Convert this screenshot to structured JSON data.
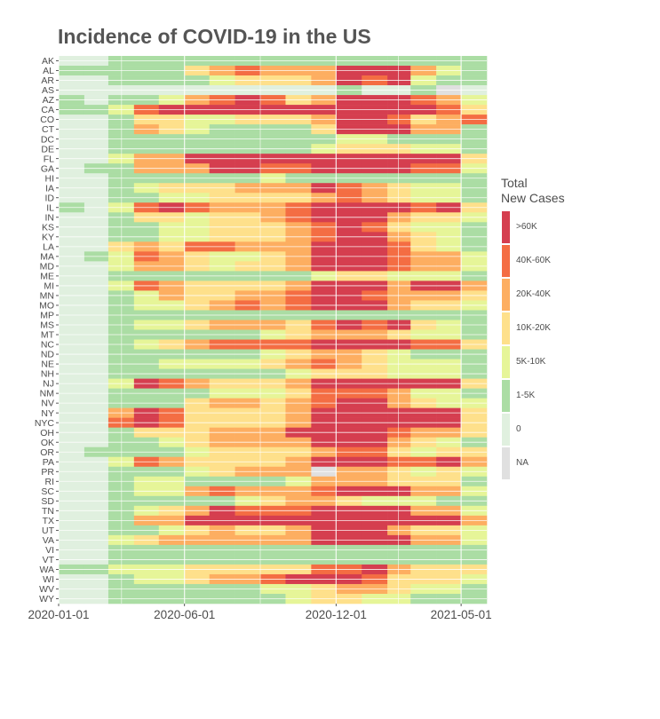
{
  "chart_data": {
    "type": "heatmap",
    "title": "Incidence of COVID-19 in the US",
    "xlabel": "",
    "ylabel": "",
    "x_ticks": [
      "2020-01-01",
      "2020-06-01",
      "2020-12-01",
      "2021-05-01"
    ],
    "x_months": [
      "2020-01",
      "2020-02",
      "2020-03",
      "2020-04",
      "2020-05",
      "2020-06",
      "2020-07",
      "2020-08",
      "2020-09",
      "2020-10",
      "2020-11",
      "2020-12",
      "2021-01",
      "2021-02",
      "2021-03",
      "2021-04",
      "2021-05"
    ],
    "legend": {
      "title": [
        "Total",
        "New Cases"
      ],
      "position": "right",
      "levels": [
        {
          "label": ">60K",
          "color": "#d53e4f"
        },
        {
          "label": "40K-60K",
          "color": "#f46d43"
        },
        {
          "label": "20K-40K",
          "color": "#fdae61"
        },
        {
          "label": "10K-20K",
          "color": "#fee08b"
        },
        {
          "label": "5K-10K",
          "color": "#e6f598"
        },
        {
          "label": "1-5K",
          "color": "#abdda4"
        },
        {
          "label": "0",
          "color": "#e0f0df"
        },
        {
          "label": "NA",
          "color": "#e0e0e0"
        }
      ]
    },
    "level_codes": "0 = 0, 1 = 1-5K, 2 = 5K-10K, 3 = 10K-20K, 4 = 20K-40K, 5 = 40K-60K, 6 = >60K, 7 = NA",
    "rows": [
      {
        "state": "AK",
        "levels": [
          0,
          0,
          1,
          1,
          1,
          1,
          1,
          1,
          1,
          1,
          1,
          1,
          1,
          1,
          1,
          1,
          1
        ]
      },
      {
        "state": "AL",
        "levels": [
          1,
          1,
          1,
          1,
          1,
          3,
          4,
          5,
          4,
          4,
          4,
          6,
          6,
          6,
          4,
          2,
          1
        ]
      },
      {
        "state": "AR",
        "levels": [
          0,
          0,
          1,
          1,
          1,
          1,
          2,
          3,
          3,
          3,
          4,
          6,
          5,
          6,
          2,
          1,
          1
        ]
      },
      {
        "state": "AS",
        "levels": [
          0,
          0,
          0,
          0,
          0,
          0,
          0,
          0,
          0,
          0,
          0,
          1,
          0,
          0,
          1,
          7,
          0
        ]
      },
      {
        "state": "AZ",
        "levels": [
          1,
          0,
          1,
          1,
          2,
          4,
          5,
          6,
          5,
          3,
          4,
          6,
          6,
          6,
          5,
          4,
          2
        ]
      },
      {
        "state": "CA",
        "levels": [
          1,
          1,
          2,
          5,
          6,
          6,
          6,
          6,
          6,
          6,
          6,
          6,
          6,
          6,
          6,
          5,
          3
        ]
      },
      {
        "state": "CO",
        "levels": [
          0,
          0,
          1,
          3,
          3,
          2,
          2,
          3,
          3,
          3,
          4,
          6,
          6,
          5,
          3,
          4,
          5
        ]
      },
      {
        "state": "CT",
        "levels": [
          0,
          0,
          1,
          4,
          3,
          2,
          1,
          1,
          1,
          1,
          3,
          6,
          6,
          6,
          4,
          4,
          1
        ]
      },
      {
        "state": "DC",
        "levels": [
          0,
          0,
          1,
          1,
          1,
          1,
          1,
          1,
          1,
          1,
          1,
          2,
          2,
          1,
          1,
          1,
          1
        ]
      },
      {
        "state": "DE",
        "levels": [
          0,
          0,
          1,
          1,
          1,
          1,
          1,
          1,
          1,
          1,
          2,
          3,
          3,
          3,
          2,
          2,
          1
        ]
      },
      {
        "state": "FL",
        "levels": [
          0,
          0,
          2,
          4,
          4,
          6,
          6,
          6,
          6,
          6,
          6,
          6,
          6,
          6,
          6,
          6,
          3
        ]
      },
      {
        "state": "GA",
        "levels": [
          0,
          1,
          1,
          4,
          4,
          4,
          6,
          6,
          5,
          5,
          6,
          6,
          6,
          6,
          5,
          5,
          2
        ]
      },
      {
        "state": "HI",
        "levels": [
          0,
          0,
          1,
          1,
          1,
          1,
          1,
          1,
          2,
          1,
          1,
          1,
          1,
          1,
          1,
          1,
          1
        ]
      },
      {
        "state": "IA",
        "levels": [
          0,
          0,
          1,
          2,
          3,
          3,
          3,
          4,
          4,
          4,
          6,
          5,
          4,
          3,
          2,
          2,
          1
        ]
      },
      {
        "state": "ID",
        "levels": [
          0,
          0,
          1,
          1,
          2,
          2,
          3,
          3,
          3,
          3,
          4,
          5,
          4,
          3,
          2,
          2,
          1
        ]
      },
      {
        "state": "IL",
        "levels": [
          1,
          0,
          2,
          5,
          6,
          5,
          4,
          4,
          4,
          5,
          6,
          6,
          6,
          6,
          5,
          6,
          3
        ]
      },
      {
        "state": "IN",
        "levels": [
          0,
          0,
          1,
          3,
          3,
          2,
          3,
          3,
          4,
          5,
          6,
          6,
          6,
          4,
          3,
          3,
          2
        ]
      },
      {
        "state": "KS",
        "levels": [
          0,
          0,
          1,
          1,
          2,
          2,
          3,
          3,
          3,
          4,
          5,
          6,
          5,
          3,
          2,
          2,
          1
        ]
      },
      {
        "state": "KY",
        "levels": [
          0,
          0,
          1,
          1,
          2,
          2,
          3,
          3,
          3,
          4,
          5,
          6,
          6,
          4,
          3,
          2,
          1
        ]
      },
      {
        "state": "LA",
        "levels": [
          0,
          0,
          3,
          4,
          3,
          5,
          5,
          4,
          4,
          4,
          6,
          6,
          6,
          5,
          3,
          2,
          1
        ]
      },
      {
        "state": "MA",
        "levels": [
          0,
          1,
          2,
          5,
          4,
          3,
          2,
          2,
          3,
          4,
          6,
          6,
          6,
          5,
          4,
          4,
          2
        ]
      },
      {
        "state": "MD",
        "levels": [
          0,
          0,
          2,
          4,
          4,
          3,
          2,
          3,
          3,
          4,
          6,
          6,
          6,
          5,
          4,
          4,
          2
        ]
      },
      {
        "state": "ME",
        "levels": [
          0,
          0,
          1,
          1,
          1,
          1,
          1,
          1,
          1,
          1,
          2,
          3,
          3,
          2,
          2,
          2,
          1
        ]
      },
      {
        "state": "MI",
        "levels": [
          0,
          0,
          2,
          5,
          4,
          3,
          3,
          3,
          3,
          4,
          6,
          6,
          6,
          4,
          6,
          6,
          4
        ]
      },
      {
        "state": "MN",
        "levels": [
          0,
          0,
          1,
          2,
          4,
          3,
          3,
          4,
          4,
          5,
          6,
          6,
          5,
          4,
          4,
          4,
          3
        ]
      },
      {
        "state": "MO",
        "levels": [
          0,
          0,
          1,
          2,
          2,
          3,
          4,
          5,
          4,
          5,
          6,
          6,
          6,
          4,
          3,
          3,
          2
        ]
      },
      {
        "state": "MP",
        "levels": [
          0,
          0,
          1,
          1,
          1,
          1,
          1,
          1,
          1,
          1,
          1,
          1,
          1,
          1,
          1,
          1,
          1
        ]
      },
      {
        "state": "MS",
        "levels": [
          0,
          0,
          1,
          2,
          2,
          3,
          4,
          4,
          4,
          3,
          5,
          6,
          5,
          6,
          3,
          2,
          1
        ]
      },
      {
        "state": "MT",
        "levels": [
          0,
          0,
          1,
          1,
          1,
          1,
          1,
          1,
          2,
          3,
          4,
          4,
          4,
          3,
          2,
          2,
          1
        ]
      },
      {
        "state": "NC",
        "levels": [
          0,
          0,
          1,
          2,
          3,
          4,
          5,
          5,
          5,
          5,
          6,
          6,
          6,
          6,
          5,
          5,
          3
        ]
      },
      {
        "state": "ND",
        "levels": [
          0,
          0,
          1,
          1,
          1,
          1,
          1,
          1,
          2,
          3,
          4,
          4,
          3,
          2,
          1,
          1,
          1
        ]
      },
      {
        "state": "NE",
        "levels": [
          0,
          0,
          1,
          1,
          2,
          2,
          2,
          2,
          3,
          4,
          5,
          4,
          3,
          2,
          2,
          2,
          1
        ]
      },
      {
        "state": "NH",
        "levels": [
          0,
          0,
          1,
          1,
          1,
          1,
          1,
          1,
          1,
          2,
          3,
          3,
          3,
          2,
          2,
          2,
          1
        ]
      },
      {
        "state": "NJ",
        "levels": [
          0,
          0,
          2,
          6,
          5,
          4,
          3,
          3,
          3,
          4,
          6,
          6,
          6,
          6,
          6,
          6,
          3
        ]
      },
      {
        "state": "NM",
        "levels": [
          0,
          0,
          1,
          1,
          1,
          1,
          2,
          2,
          2,
          3,
          5,
          5,
          5,
          4,
          2,
          2,
          1
        ]
      },
      {
        "state": "NV",
        "levels": [
          0,
          0,
          1,
          1,
          1,
          3,
          4,
          4,
          3,
          4,
          5,
          6,
          6,
          4,
          3,
          2,
          2
        ]
      },
      {
        "state": "NY",
        "levels": [
          0,
          0,
          4,
          6,
          5,
          3,
          3,
          3,
          3,
          4,
          6,
          6,
          6,
          6,
          6,
          6,
          3
        ]
      },
      {
        "state": "NYC",
        "levels": [
          0,
          0,
          5,
          6,
          5,
          3,
          3,
          3,
          3,
          4,
          6,
          6,
          6,
          6,
          6,
          6,
          3
        ]
      },
      {
        "state": "OH",
        "levels": [
          0,
          0,
          1,
          3,
          3,
          3,
          4,
          4,
          4,
          6,
          6,
          6,
          6,
          5,
          4,
          4,
          3
        ]
      },
      {
        "state": "OK",
        "levels": [
          0,
          0,
          1,
          1,
          2,
          3,
          4,
          4,
          4,
          4,
          6,
          6,
          6,
          4,
          3,
          2,
          1
        ]
      },
      {
        "state": "OR",
        "levels": [
          0,
          1,
          1,
          1,
          1,
          2,
          3,
          3,
          3,
          3,
          4,
          5,
          5,
          3,
          2,
          3,
          3
        ]
      },
      {
        "state": "PA",
        "levels": [
          0,
          0,
          2,
          5,
          4,
          3,
          3,
          3,
          3,
          4,
          6,
          6,
          6,
          5,
          5,
          6,
          4
        ]
      },
      {
        "state": "PR",
        "levels": [
          0,
          0,
          1,
          1,
          1,
          2,
          3,
          4,
          4,
          4,
          7,
          4,
          4,
          3,
          2,
          3,
          2
        ]
      },
      {
        "state": "RI",
        "levels": [
          0,
          0,
          1,
          2,
          2,
          1,
          1,
          1,
          1,
          2,
          4,
          4,
          4,
          3,
          3,
          3,
          1
        ]
      },
      {
        "state": "SC",
        "levels": [
          0,
          0,
          1,
          2,
          2,
          4,
          5,
          4,
          4,
          4,
          5,
          6,
          6,
          6,
          4,
          4,
          2
        ]
      },
      {
        "state": "SD",
        "levels": [
          0,
          0,
          1,
          1,
          1,
          1,
          1,
          2,
          3,
          4,
          4,
          3,
          2,
          2,
          2,
          1,
          1
        ]
      },
      {
        "state": "TN",
        "levels": [
          0,
          0,
          1,
          2,
          3,
          4,
          6,
          5,
          5,
          5,
          6,
          6,
          6,
          6,
          4,
          4,
          2
        ]
      },
      {
        "state": "TX",
        "levels": [
          0,
          0,
          1,
          4,
          4,
          6,
          6,
          6,
          6,
          6,
          6,
          6,
          6,
          6,
          6,
          6,
          4
        ]
      },
      {
        "state": "UT",
        "levels": [
          0,
          0,
          1,
          1,
          2,
          3,
          4,
          3,
          3,
          4,
          6,
          6,
          6,
          4,
          3,
          3,
          2
        ]
      },
      {
        "state": "VA",
        "levels": [
          0,
          0,
          2,
          3,
          4,
          4,
          4,
          4,
          4,
          4,
          6,
          6,
          6,
          6,
          4,
          4,
          2
        ]
      },
      {
        "state": "VI",
        "levels": [
          0,
          0,
          1,
          1,
          1,
          1,
          1,
          1,
          1,
          1,
          1,
          1,
          1,
          1,
          1,
          1,
          1
        ]
      },
      {
        "state": "VT",
        "levels": [
          0,
          0,
          1,
          1,
          1,
          1,
          1,
          1,
          1,
          1,
          1,
          1,
          1,
          1,
          1,
          1,
          1
        ]
      },
      {
        "state": "WA",
        "levels": [
          1,
          1,
          2,
          2,
          2,
          3,
          3,
          3,
          3,
          3,
          5,
          5,
          6,
          4,
          3,
          3,
          3
        ]
      },
      {
        "state": "WI",
        "levels": [
          0,
          0,
          1,
          2,
          2,
          3,
          4,
          4,
          5,
          6,
          6,
          6,
          5,
          3,
          3,
          3,
          2
        ]
      },
      {
        "state": "WV",
        "levels": [
          0,
          0,
          1,
          1,
          1,
          1,
          1,
          1,
          2,
          2,
          3,
          4,
          4,
          3,
          2,
          2,
          1
        ]
      },
      {
        "state": "WY",
        "levels": [
          0,
          0,
          1,
          1,
          1,
          1,
          1,
          1,
          1,
          2,
          3,
          3,
          2,
          2,
          1,
          1,
          1
        ]
      }
    ]
  }
}
